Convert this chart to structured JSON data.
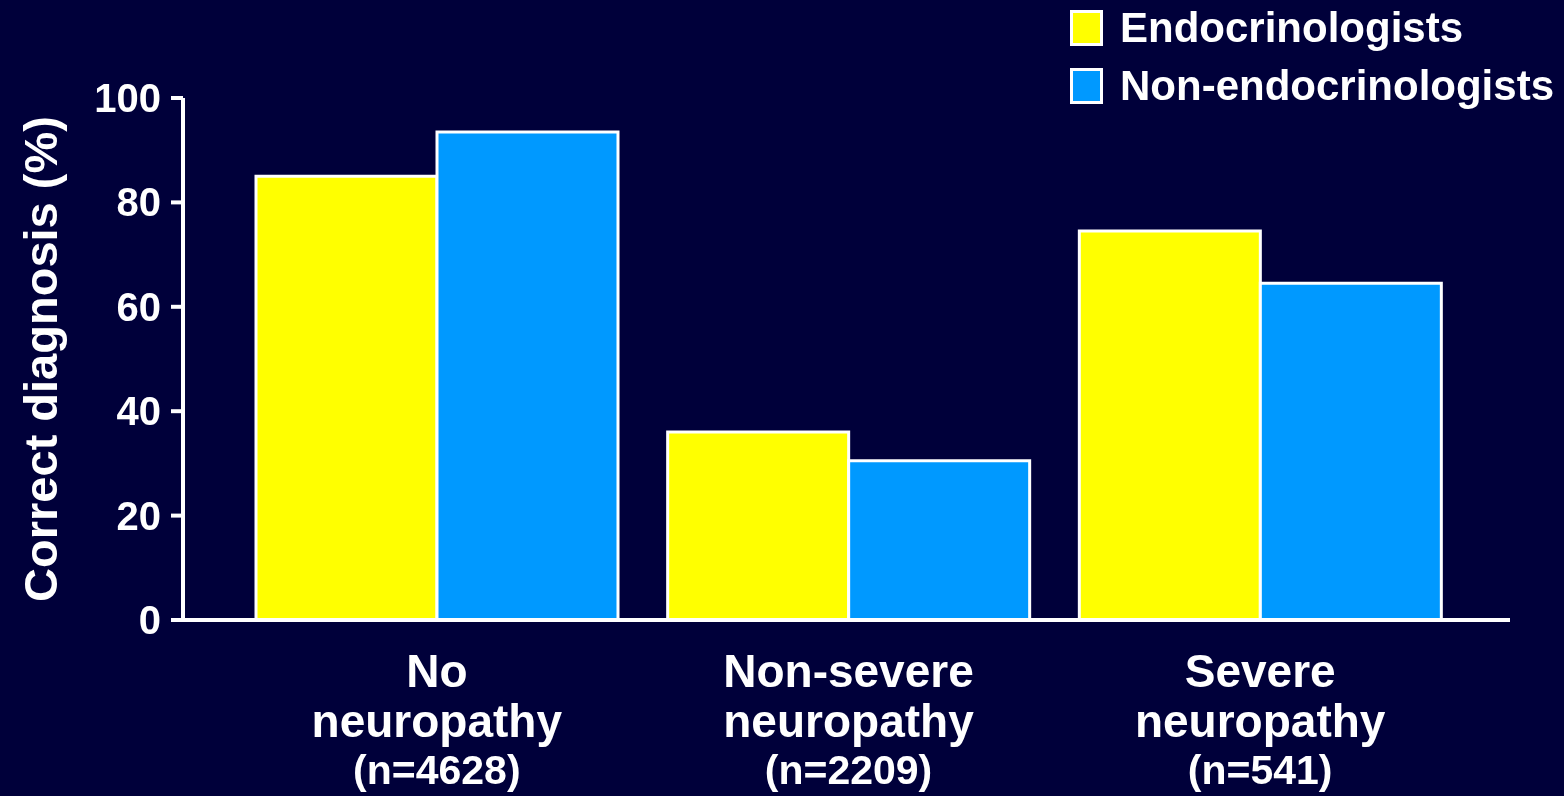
{
  "chart_data": {
    "type": "bar",
    "categories": [
      "No\nneuropathy\n(n=4628)",
      "Non-severe\nneuropathy\n(n=2209)",
      "Severe\nneuropathy\n(n=541)"
    ],
    "series": [
      {
        "name": "Endocrinologists",
        "color": "#ffff00",
        "values": [
          85,
          36,
          74.5
        ]
      },
      {
        "name": "Non-endocrinologists",
        "color": "#0099ff",
        "values": [
          93.5,
          30.5,
          64.5
        ]
      }
    ],
    "ylabel": "Correct diagnosis (%)",
    "ylim": [
      0,
      100
    ],
    "yticks": [
      0,
      20,
      40,
      60,
      80,
      100
    ],
    "legend": "top right"
  }
}
